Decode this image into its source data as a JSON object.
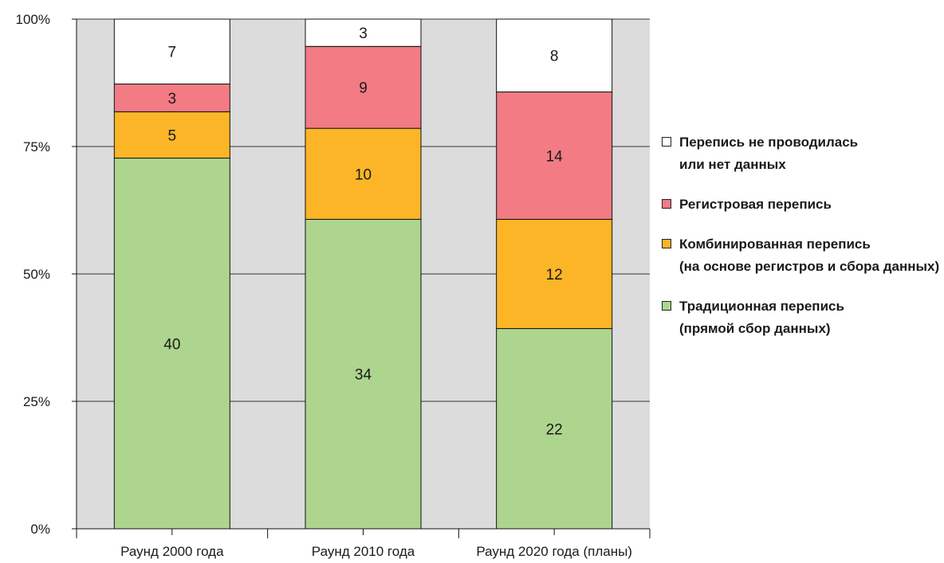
{
  "chart_data": {
    "type": "bar",
    "stacked": true,
    "normalized_percent": true,
    "categories": [
      "Раунд 2000 года",
      "Раунд 2010 года",
      "Раунд 2020 года (планы)"
    ],
    "series": [
      {
        "name": "Традиционная перепись (прямой сбор данных)",
        "values": [
          40,
          34,
          22
        ],
        "color": "#aed58e"
      },
      {
        "name": "Комбинированная перепись (на основе регистров и сбора данных)",
        "values": [
          5,
          10,
          12
        ],
        "color": "#fbb526"
      },
      {
        "name": "Регистровая перепись",
        "values": [
          3,
          9,
          14
        ],
        "color": "#f27b84"
      },
      {
        "name": "Перепись не проводилась или нет данных",
        "values": [
          7,
          3,
          8
        ],
        "color": "#ffffff"
      }
    ],
    "yticks": [
      "0%",
      "25%",
      "50%",
      "75%",
      "100%"
    ],
    "ylim": [
      0,
      100
    ],
    "grid": true,
    "plot_background": "#dcdcdc",
    "legend_position": "right"
  },
  "legend": {
    "items": [
      {
        "lines": [
          "Перепись не проводилась",
          "или нет данных"
        ],
        "color": "#ffffff"
      },
      {
        "lines": [
          "Регистровая перепись"
        ],
        "color": "#f27b84"
      },
      {
        "lines": [
          "Комбинированная перепись",
          "(на основе регистров и сбора данных)"
        ],
        "color": "#fbb526"
      },
      {
        "lines": [
          "Традиционная перепись",
          "(прямой сбор данных)"
        ],
        "color": "#aed58e"
      }
    ]
  }
}
